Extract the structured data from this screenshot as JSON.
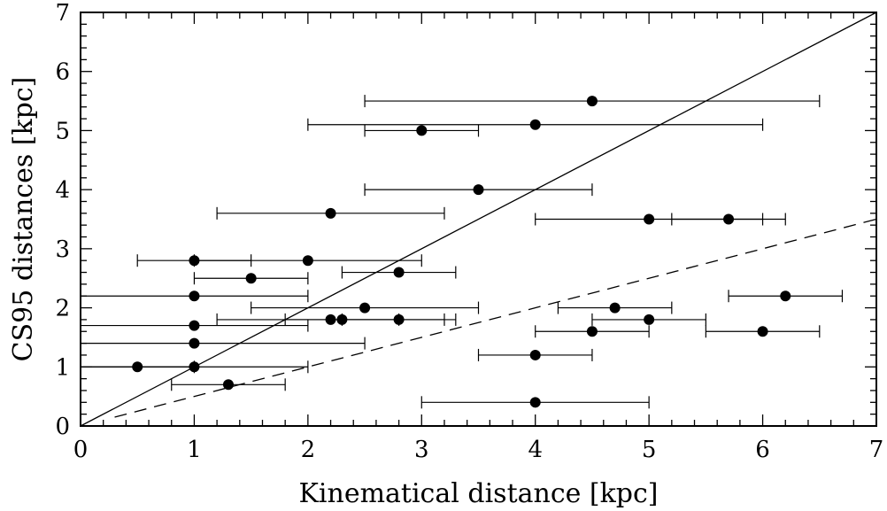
{
  "chart_data": {
    "type": "scatter",
    "title": "",
    "xlabel": "Kinematical distance [kpc]",
    "ylabel": "CS95 distances  [kpc]",
    "xlim": [
      0,
      7
    ],
    "ylim": [
      0,
      7
    ],
    "xticks": [
      0,
      1,
      2,
      3,
      4,
      5,
      6,
      7
    ],
    "yticks": [
      0,
      1,
      2,
      3,
      4,
      5,
      6,
      7
    ],
    "grid": false,
    "points": [
      {
        "x": 4.5,
        "y": 5.5,
        "xerr": [
          2.5,
          6.5
        ]
      },
      {
        "x": 4.0,
        "y": 5.1,
        "xerr": [
          2.0,
          6.0
        ]
      },
      {
        "x": 3.0,
        "y": 5.0,
        "xerr": [
          2.5,
          3.5
        ]
      },
      {
        "x": 3.5,
        "y": 4.0,
        "xerr": [
          2.5,
          4.5
        ]
      },
      {
        "x": 2.2,
        "y": 3.6,
        "xerr": [
          1.2,
          3.2
        ]
      },
      {
        "x": 5.0,
        "y": 3.5,
        "xerr": [
          4.0,
          6.0
        ]
      },
      {
        "x": 5.7,
        "y": 3.5,
        "xerr": [
          5.2,
          6.2
        ]
      },
      {
        "x": 1.0,
        "y": 2.8,
        "xerr": [
          0.5,
          1.5
        ]
      },
      {
        "x": 2.0,
        "y": 2.8,
        "xerr": [
          1.0,
          3.0
        ]
      },
      {
        "x": 2.8,
        "y": 2.6,
        "xerr": [
          2.3,
          3.3
        ]
      },
      {
        "x": 1.5,
        "y": 2.5,
        "xerr": [
          1.0,
          2.0
        ]
      },
      {
        "x": 1.0,
        "y": 2.2,
        "xerr": [
          0.0,
          2.0
        ]
      },
      {
        "x": 6.2,
        "y": 2.2,
        "xerr": [
          5.7,
          6.7
        ]
      },
      {
        "x": 2.5,
        "y": 2.0,
        "xerr": [
          1.5,
          3.5
        ]
      },
      {
        "x": 4.7,
        "y": 2.0,
        "xerr": [
          4.2,
          5.2
        ]
      },
      {
        "x": 2.2,
        "y": 1.8,
        "xerr": [
          1.2,
          3.2
        ]
      },
      {
        "x": 2.3,
        "y": 1.8,
        "xerr": [
          1.8,
          2.8
        ]
      },
      {
        "x": 2.8,
        "y": 1.8,
        "xerr": [
          2.3,
          3.3
        ]
      },
      {
        "x": 5.0,
        "y": 1.8,
        "xerr": [
          4.5,
          5.5
        ]
      },
      {
        "x": 1.0,
        "y": 1.7,
        "xerr": [
          0.0,
          2.0
        ]
      },
      {
        "x": 4.5,
        "y": 1.6,
        "xerr": [
          4.0,
          5.0
        ]
      },
      {
        "x": 6.0,
        "y": 1.6,
        "xerr": [
          5.5,
          6.5
        ]
      },
      {
        "x": 1.0,
        "y": 1.4,
        "xerr": [
          0.0,
          2.5
        ]
      },
      {
        "x": 4.0,
        "y": 1.2,
        "xerr": [
          3.5,
          4.5
        ]
      },
      {
        "x": 0.5,
        "y": 1.0,
        "xerr": [
          0.0,
          1.0
        ]
      },
      {
        "x": 1.0,
        "y": 1.0,
        "xerr": [
          0.0,
          2.0
        ]
      },
      {
        "x": 1.3,
        "y": 0.7,
        "xerr": [
          0.8,
          1.8
        ]
      },
      {
        "x": 4.0,
        "y": 0.4,
        "xerr": [
          3.0,
          5.0
        ]
      }
    ],
    "lines": [
      {
        "style": "solid",
        "slope": 1.0,
        "x_range": [
          0,
          7
        ]
      },
      {
        "style": "dashed",
        "slope": 0.5,
        "x_range": [
          0.3,
          7
        ]
      }
    ]
  }
}
